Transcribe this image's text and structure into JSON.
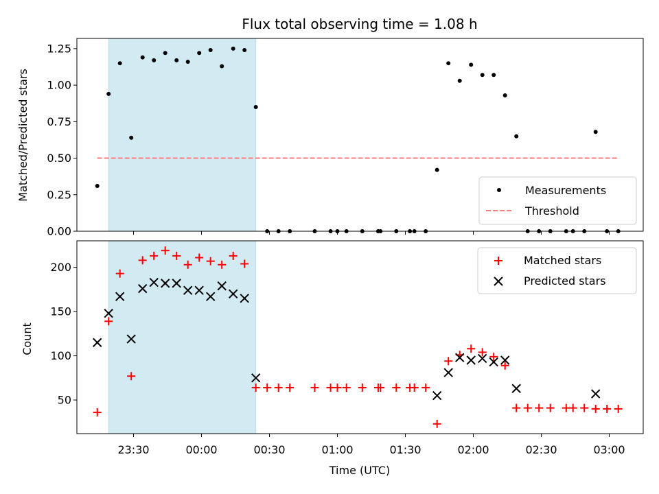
{
  "chart_data": [
    {
      "type": "scatter",
      "title": "Flux total observing time = 1.08 h",
      "xlabel": "",
      "ylabel": "Matched/Predicted stars",
      "xlim": [
        "23:05",
        "03:15"
      ],
      "ylim": [
        0,
        1.32
      ],
      "x_ticks": [
        "23:30",
        "00:00",
        "00:30",
        "01:00",
        "01:30",
        "02:00",
        "02:30",
        "03:00"
      ],
      "y_ticks": [
        "0.00",
        "0.25",
        "0.50",
        "0.75",
        "1.00",
        "1.25"
      ],
      "shaded_region": {
        "from": "23:19",
        "to": "00:24",
        "color": "#add8e6"
      },
      "legend_position": "lower right",
      "series": [
        {
          "name": "Measurements",
          "marker": "dot",
          "color": "#000000",
          "points": [
            {
              "x": "23:14",
              "y": 0.31
            },
            {
              "x": "23:19",
              "y": 0.94
            },
            {
              "x": "23:24",
              "y": 1.15
            },
            {
              "x": "23:29",
              "y": 0.64
            },
            {
              "x": "23:34",
              "y": 1.19
            },
            {
              "x": "23:39",
              "y": 1.17
            },
            {
              "x": "23:44",
              "y": 1.22
            },
            {
              "x": "23:49",
              "y": 1.17
            },
            {
              "x": "23:54",
              "y": 1.16
            },
            {
              "x": "23:59",
              "y": 1.22
            },
            {
              "x": "00:04",
              "y": 1.24
            },
            {
              "x": "00:09",
              "y": 1.13
            },
            {
              "x": "00:14",
              "y": 1.25
            },
            {
              "x": "00:19",
              "y": 1.24
            },
            {
              "x": "00:24",
              "y": 0.85
            },
            {
              "x": "00:29",
              "y": 0.0
            },
            {
              "x": "00:34",
              "y": 0.0
            },
            {
              "x": "00:39",
              "y": 0.0
            },
            {
              "x": "00:50",
              "y": 0.0
            },
            {
              "x": "00:57",
              "y": 0.0
            },
            {
              "x": "01:00",
              "y": 0.0
            },
            {
              "x": "01:04",
              "y": 0.0
            },
            {
              "x": "01:11",
              "y": 0.0
            },
            {
              "x": "01:18",
              "y": 0.0
            },
            {
              "x": "01:19",
              "y": 0.0
            },
            {
              "x": "01:26",
              "y": 0.0
            },
            {
              "x": "01:32",
              "y": 0.0
            },
            {
              "x": "01:34",
              "y": 0.0
            },
            {
              "x": "01:39",
              "y": 0.0
            },
            {
              "x": "01:44",
              "y": 0.42
            },
            {
              "x": "01:49",
              "y": 1.15
            },
            {
              "x": "01:54",
              "y": 1.03
            },
            {
              "x": "01:59",
              "y": 1.14
            },
            {
              "x": "02:04",
              "y": 1.07
            },
            {
              "x": "02:09",
              "y": 1.07
            },
            {
              "x": "02:14",
              "y": 0.93
            },
            {
              "x": "02:19",
              "y": 0.65
            },
            {
              "x": "02:24",
              "y": 0.0
            },
            {
              "x": "02:29",
              "y": 0.0
            },
            {
              "x": "02:34",
              "y": 0.0
            },
            {
              "x": "02:41",
              "y": 0.0
            },
            {
              "x": "02:44",
              "y": 0.0
            },
            {
              "x": "02:49",
              "y": 0.0
            },
            {
              "x": "02:54",
              "y": 0.68
            },
            {
              "x": "02:59",
              "y": 0.0
            },
            {
              "x": "03:04",
              "y": 0.0
            }
          ]
        },
        {
          "name": "Threshold",
          "marker": "dashed-line",
          "color": "#ff7f7f",
          "points": [
            {
              "x": "23:14",
              "y": 0.5
            },
            {
              "x": "03:04",
              "y": 0.5
            }
          ]
        }
      ]
    },
    {
      "type": "scatter",
      "title": "",
      "xlabel": "Time (UTC)",
      "ylabel": "Count",
      "xlim": [
        "23:05",
        "03:15"
      ],
      "ylim": [
        12,
        230
      ],
      "x_ticks": [
        "23:30",
        "00:00",
        "00:30",
        "01:00",
        "01:30",
        "02:00",
        "02:30",
        "03:00"
      ],
      "y_ticks": [
        "50",
        "100",
        "150",
        "200"
      ],
      "shaded_region": {
        "from": "23:19",
        "to": "00:24",
        "color": "#add8e6"
      },
      "legend_position": "upper right",
      "series": [
        {
          "name": "Matched stars",
          "marker": "plus",
          "color": "#ff0000",
          "points": [
            {
              "x": "23:14",
              "y": 36
            },
            {
              "x": "23:19",
              "y": 139
            },
            {
              "x": "23:24",
              "y": 193
            },
            {
              "x": "23:29",
              "y": 77
            },
            {
              "x": "23:34",
              "y": 208
            },
            {
              "x": "23:39",
              "y": 213
            },
            {
              "x": "23:44",
              "y": 219
            },
            {
              "x": "23:49",
              "y": 213
            },
            {
              "x": "23:54",
              "y": 203
            },
            {
              "x": "23:59",
              "y": 211
            },
            {
              "x": "00:04",
              "y": 207
            },
            {
              "x": "00:09",
              "y": 203
            },
            {
              "x": "00:14",
              "y": 213
            },
            {
              "x": "00:19",
              "y": 204
            },
            {
              "x": "00:24",
              "y": 64
            },
            {
              "x": "00:29",
              "y": 64
            },
            {
              "x": "00:34",
              "y": 64
            },
            {
              "x": "00:39",
              "y": 64
            },
            {
              "x": "00:50",
              "y": 64
            },
            {
              "x": "00:57",
              "y": 64
            },
            {
              "x": "01:00",
              "y": 64
            },
            {
              "x": "01:04",
              "y": 64
            },
            {
              "x": "01:11",
              "y": 64
            },
            {
              "x": "01:18",
              "y": 64
            },
            {
              "x": "01:19",
              "y": 64
            },
            {
              "x": "01:26",
              "y": 64
            },
            {
              "x": "01:32",
              "y": 64
            },
            {
              "x": "01:34",
              "y": 64
            },
            {
              "x": "01:39",
              "y": 64
            },
            {
              "x": "01:44",
              "y": 23
            },
            {
              "x": "01:49",
              "y": 94
            },
            {
              "x": "01:54",
              "y": 101
            },
            {
              "x": "01:59",
              "y": 108
            },
            {
              "x": "02:04",
              "y": 104
            },
            {
              "x": "02:09",
              "y": 99
            },
            {
              "x": "02:14",
              "y": 89
            },
            {
              "x": "02:19",
              "y": 41
            },
            {
              "x": "02:24",
              "y": 41
            },
            {
              "x": "02:29",
              "y": 41
            },
            {
              "x": "02:34",
              "y": 41
            },
            {
              "x": "02:41",
              "y": 41
            },
            {
              "x": "02:44",
              "y": 41
            },
            {
              "x": "02:49",
              "y": 41
            },
            {
              "x": "02:54",
              "y": 40
            },
            {
              "x": "02:59",
              "y": 40
            },
            {
              "x": "03:04",
              "y": 40
            }
          ]
        },
        {
          "name": "Predicted stars",
          "marker": "x",
          "color": "#000000",
          "points": [
            {
              "x": "23:14",
              "y": 115
            },
            {
              "x": "23:19",
              "y": 148
            },
            {
              "x": "23:24",
              "y": 167
            },
            {
              "x": "23:29",
              "y": 119
            },
            {
              "x": "23:34",
              "y": 176
            },
            {
              "x": "23:39",
              "y": 183
            },
            {
              "x": "23:44",
              "y": 182
            },
            {
              "x": "23:49",
              "y": 182
            },
            {
              "x": "23:54",
              "y": 174
            },
            {
              "x": "23:59",
              "y": 174
            },
            {
              "x": "00:04",
              "y": 167
            },
            {
              "x": "00:09",
              "y": 179
            },
            {
              "x": "00:14",
              "y": 170
            },
            {
              "x": "00:19",
              "y": 165
            },
            {
              "x": "00:24",
              "y": 75
            },
            {
              "x": "01:44",
              "y": 55
            },
            {
              "x": "01:49",
              "y": 81
            },
            {
              "x": "01:54",
              "y": 98
            },
            {
              "x": "01:59",
              "y": 95
            },
            {
              "x": "02:04",
              "y": 97
            },
            {
              "x": "02:09",
              "y": 93
            },
            {
              "x": "02:14",
              "y": 95
            },
            {
              "x": "02:19",
              "y": 63
            },
            {
              "x": "02:54",
              "y": 57
            }
          ]
        }
      ]
    }
  ]
}
